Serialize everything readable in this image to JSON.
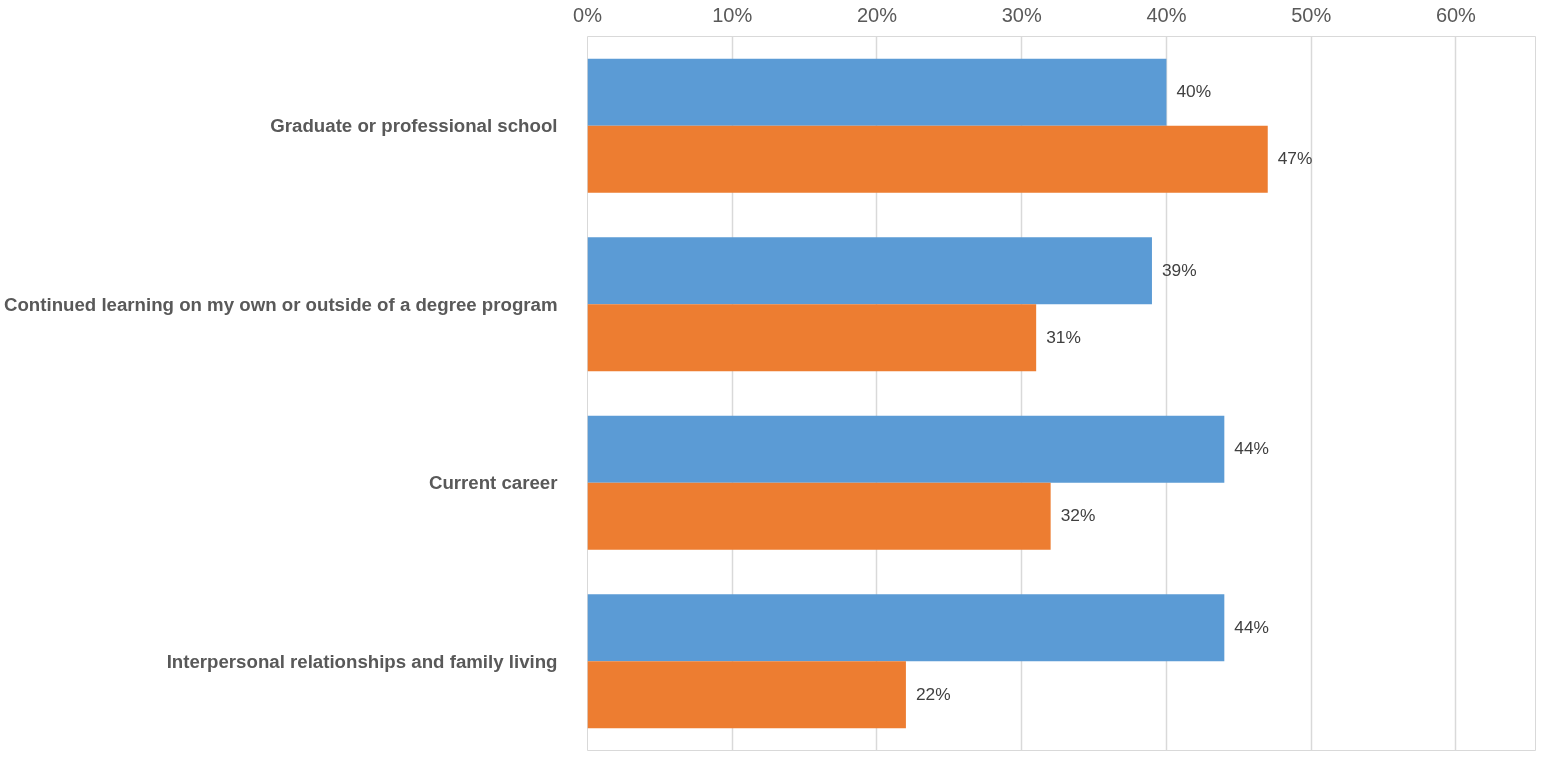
{
  "chart_data": {
    "type": "bar",
    "orientation": "horizontal",
    "categories": [
      "Graduate or professional school",
      "Continued learning on my own or outside of a degree program",
      "Current career",
      "Interpersonal relationships and family living"
    ],
    "series": [
      {
        "color": "#5b9bd5",
        "values": [
          40,
          39,
          44,
          44
        ],
        "value_labels": [
          "40%",
          "39%",
          "44%",
          "44%"
        ]
      },
      {
        "color": "#ed7d31",
        "values": [
          47,
          31,
          32,
          22
        ],
        "value_labels": [
          "47%",
          "31%",
          "32%",
          "22%"
        ]
      }
    ],
    "xlim": [
      0,
      65.5
    ],
    "xticks": [
      {
        "value": 0,
        "label": "0%"
      },
      {
        "value": 10,
        "label": "10%"
      },
      {
        "value": 20,
        "label": "20%"
      },
      {
        "value": 30,
        "label": "30%"
      },
      {
        "value": 40,
        "label": "40%"
      },
      {
        "value": 50,
        "label": "50%"
      },
      {
        "value": 60,
        "label": "60%"
      }
    ],
    "grid": "x"
  }
}
